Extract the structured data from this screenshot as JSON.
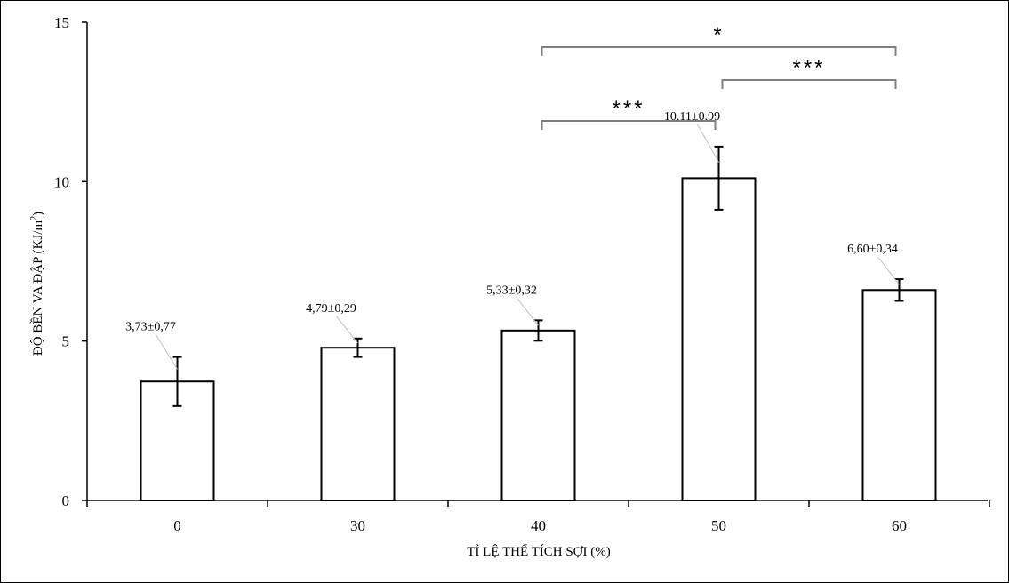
{
  "chart_data": {
    "type": "bar",
    "title": "",
    "xlabel": "TỈ LỆ THỂ TÍCH SỢI (%)",
    "ylabel_main": "ĐỘ BỀN VA ĐẬP (KJ/m",
    "ylabel_sup": "2",
    "ylabel_close": ")",
    "ylim": [
      0,
      15
    ],
    "yticks": [
      "0",
      "5",
      "10",
      "15"
    ],
    "ytick_values": [
      0,
      5,
      10,
      15
    ],
    "categories": [
      "0",
      "30",
      "40",
      "50",
      "60"
    ],
    "values": [
      3.73,
      4.79,
      5.33,
      10.11,
      6.6
    ],
    "errors": [
      0.77,
      0.29,
      0.32,
      0.99,
      0.34
    ],
    "data_labels": [
      "3,73±0,77",
      "4,79±0,29",
      "5,33±0,32",
      "10,11±0,99",
      "6,60±0,34"
    ],
    "significance": [
      {
        "from": 2,
        "to": 4,
        "label": "*"
      },
      {
        "from": 3,
        "to": 4,
        "label": "***"
      },
      {
        "from": 2,
        "to": 3,
        "label": "***"
      }
    ],
    "grid": false,
    "legend": "none",
    "bar_fill": "#ffffff",
    "bar_stroke": "#000000",
    "bracket_color": "#808080"
  }
}
